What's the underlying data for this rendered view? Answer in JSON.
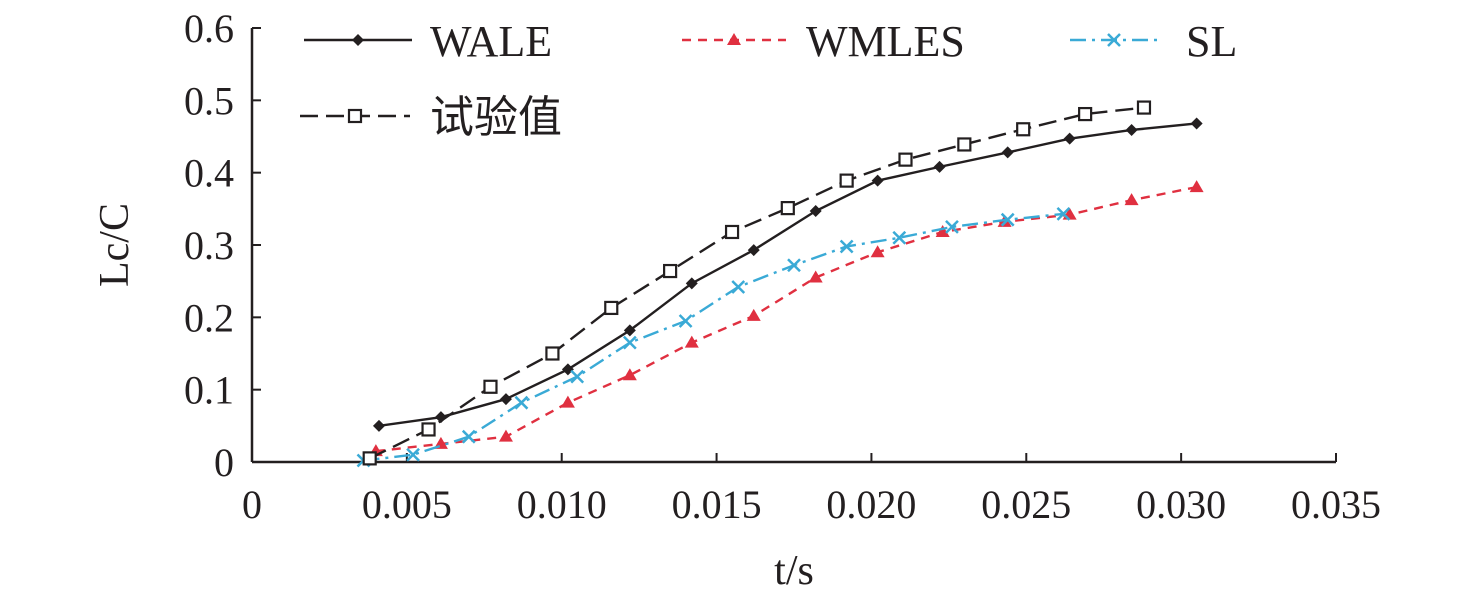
{
  "chart_data": {
    "type": "line",
    "xlabel": "t/s",
    "ylabel": "Lc/C",
    "xlim": [
      0,
      0.035
    ],
    "ylim": [
      0,
      0.6
    ],
    "x_ticks": [
      "0",
      "0.005",
      "0.010",
      "0.015",
      "0.020",
      "0.025",
      "0.030",
      "0.035"
    ],
    "y_ticks": [
      "0",
      "0.1",
      "0.2",
      "0.3",
      "0.4",
      "0.5",
      "0.6"
    ],
    "grid": false,
    "legend_position": "top",
    "series": [
      {
        "name": "WALE",
        "color": "#231f20",
        "line": "solid",
        "marker": "diamond",
        "points": [
          [
            0.0041,
            0.05
          ],
          [
            0.0061,
            0.062
          ],
          [
            0.0082,
            0.087
          ],
          [
            0.0102,
            0.128
          ],
          [
            0.0122,
            0.182
          ],
          [
            0.0142,
            0.247
          ],
          [
            0.0162,
            0.293
          ],
          [
            0.0182,
            0.347
          ],
          [
            0.0202,
            0.389
          ],
          [
            0.0222,
            0.408
          ],
          [
            0.0244,
            0.428
          ],
          [
            0.0264,
            0.447
          ],
          [
            0.0284,
            0.459
          ],
          [
            0.0305,
            0.468
          ]
        ]
      },
      {
        "name": "WMLES",
        "color": "#e03040",
        "line": "dashed",
        "marker": "triangle",
        "points": [
          [
            0.004,
            0.015
          ],
          [
            0.0061,
            0.025
          ],
          [
            0.0082,
            0.035
          ],
          [
            0.0102,
            0.082
          ],
          [
            0.0122,
            0.12
          ],
          [
            0.0142,
            0.165
          ],
          [
            0.0162,
            0.202
          ],
          [
            0.0182,
            0.255
          ],
          [
            0.0202,
            0.29
          ],
          [
            0.0223,
            0.318
          ],
          [
            0.0243,
            0.332
          ],
          [
            0.0264,
            0.342
          ],
          [
            0.0284,
            0.362
          ],
          [
            0.0305,
            0.38
          ]
        ]
      },
      {
        "name": "SL",
        "color": "#3aaad6",
        "line": "dashdot",
        "marker": "x",
        "points": [
          [
            0.0036,
            0.002
          ],
          [
            0.0052,
            0.01
          ],
          [
            0.007,
            0.035
          ],
          [
            0.0087,
            0.082
          ],
          [
            0.0105,
            0.118
          ],
          [
            0.0122,
            0.165
          ],
          [
            0.014,
            0.195
          ],
          [
            0.0157,
            0.242
          ],
          [
            0.0175,
            0.272
          ],
          [
            0.0192,
            0.298
          ],
          [
            0.0209,
            0.31
          ],
          [
            0.0226,
            0.325
          ],
          [
            0.0244,
            0.335
          ],
          [
            0.0262,
            0.343
          ]
        ]
      },
      {
        "name": "试验值",
        "color": "#231f20",
        "line": "longdash",
        "marker": "square-open",
        "points": [
          [
            0.0038,
            0.005
          ],
          [
            0.0057,
            0.045
          ],
          [
            0.0077,
            0.104
          ],
          [
            0.0097,
            0.15
          ],
          [
            0.0116,
            0.213
          ],
          [
            0.0135,
            0.264
          ],
          [
            0.0155,
            0.318
          ],
          [
            0.0173,
            0.351
          ],
          [
            0.0192,
            0.389
          ],
          [
            0.0211,
            0.418
          ],
          [
            0.023,
            0.439
          ],
          [
            0.0249,
            0.46
          ],
          [
            0.0269,
            0.481
          ],
          [
            0.0288,
            0.49
          ]
        ]
      }
    ]
  }
}
